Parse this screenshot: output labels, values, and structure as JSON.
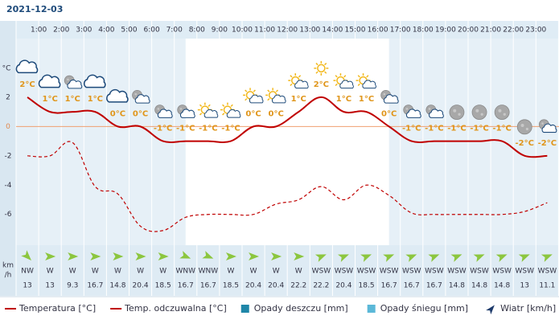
{
  "chart_data": {
    "type": "line",
    "title": "2021-12-03",
    "hour_labels": [
      "1:00",
      "2:00",
      "3:00",
      "4:00",
      "5:00",
      "6:00",
      "7:00",
      "8:00",
      "9:00",
      "10:00",
      "11:00",
      "12:00",
      "13:00",
      "14:00",
      "15:00",
      "16:00",
      "17:00",
      "18:00",
      "19:00",
      "20:00",
      "21:00",
      "22:00",
      "23:00"
    ],
    "y_label": "°C",
    "ylim": [
      -8.1,
      6.0
    ],
    "yticks": [
      2,
      0,
      -2,
      -4,
      -6
    ],
    "series": [
      {
        "name": "Temperatura [°C]",
        "color": "#c00000",
        "dashed": false,
        "values": [
          2,
          1,
          1,
          1,
          0,
          0,
          -1,
          -1,
          -1,
          -1,
          0,
          0,
          1,
          2,
          1,
          1,
          0,
          -1,
          -1,
          -1,
          -1,
          -1,
          -2,
          -2
        ],
        "value_labels": [
          "2°C",
          "1°C",
          "1°C",
          "1°C",
          "0°C",
          "0°C",
          "-1°C",
          "-1°C",
          "-1°C",
          "-1°C",
          "0°C",
          "0°C",
          "1°C",
          "2°C",
          "1°C",
          "1°C",
          "0°C",
          "-1°C",
          "-1°C",
          "-1°C",
          "-1°C",
          "-1°C",
          "-2°C",
          "-2°C"
        ]
      },
      {
        "name": "Temp. odczuwalna [°C]",
        "color": "#c00000",
        "dashed": true,
        "values": [
          -2.0,
          -2.0,
          -1.1,
          -4.1,
          -4.6,
          -6.8,
          -7.1,
          -6.2,
          -6.0,
          -6.0,
          -6.0,
          -5.3,
          -5.0,
          -4.1,
          -5.0,
          -4.0,
          -4.7,
          -5.9,
          -6.0,
          -6.0,
          -6.0,
          -6.0,
          -5.8,
          -5.2
        ]
      }
    ],
    "wind": {
      "unit_lines": [
        "km",
        "/h"
      ],
      "directions": [
        "NW",
        "W",
        "W",
        "W",
        "W",
        "W",
        "W",
        "WNW",
        "WNW",
        "W",
        "W",
        "W",
        "W",
        "WSW",
        "WSW",
        "WSW",
        "WSW",
        "WSW",
        "WSW",
        "WSW",
        "WSW",
        "WSW",
        "WSW",
        "WSW"
      ],
      "speeds": [
        13,
        13,
        9.3,
        16.7,
        14.8,
        20.4,
        18.5,
        16.7,
        16.7,
        18.5,
        20.4,
        20.4,
        22.2,
        22.2,
        20.4,
        18.5,
        16.7,
        16.7,
        16.7,
        14.8,
        14.8,
        14.8,
        13,
        11.1
      ]
    },
    "legend_extra": [
      {
        "name": "Opady deszczu [mm]",
        "color": "#1f86a8"
      },
      {
        "name": "Opady śniegu [mm]",
        "color": "#5bb8d8"
      },
      {
        "name": "Wiatr [km/h]",
        "color": "#1d3a6b"
      }
    ]
  }
}
